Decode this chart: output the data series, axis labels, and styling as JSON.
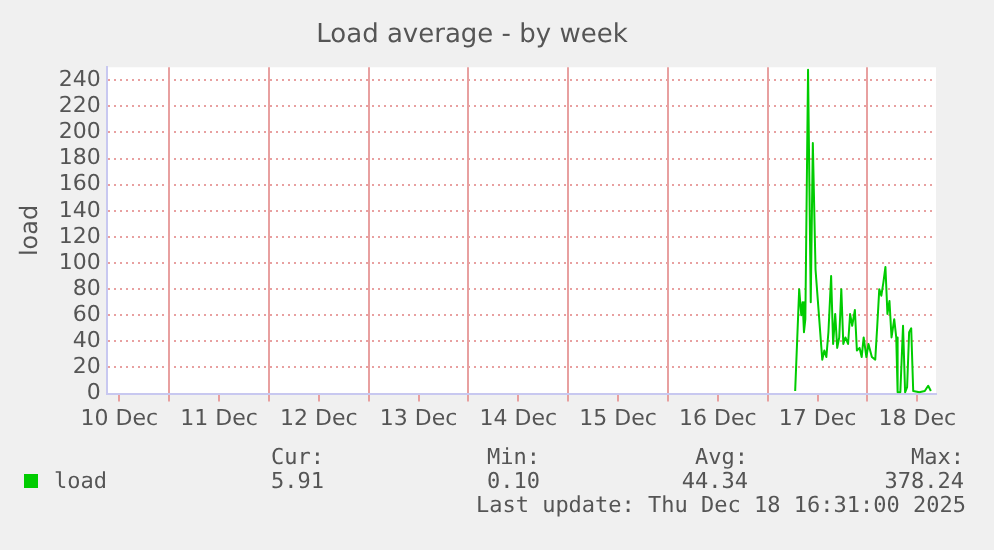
{
  "chart_data": {
    "type": "line",
    "title": "Load average - by week",
    "ylabel": "load",
    "series": [
      {
        "name": "load",
        "color": "#00cc00",
        "x": [
          "2025-12-17T06:37",
          "2025-12-17T07:35",
          "2025-12-17T08:05",
          "2025-12-17T08:25",
          "2025-12-17T08:44",
          "2025-12-17T09:04",
          "2025-12-17T09:43",
          "2025-12-17T10:22",
          "2025-12-17T10:52",
          "2025-12-17T11:31",
          "2025-12-17T13:08",
          "2025-12-17T13:38",
          "2025-12-17T14:07",
          "2025-12-17T14:37",
          "2025-12-17T15:16",
          "2025-12-17T15:45",
          "2025-12-17T16:15",
          "2025-12-17T16:44",
          "2025-12-17T17:13",
          "2025-12-17T17:43",
          "2025-12-17T18:12",
          "2025-12-17T18:42",
          "2025-12-17T19:21",
          "2025-12-17T19:50",
          "2025-12-17T20:20",
          "2025-12-17T20:59",
          "2025-12-17T21:28",
          "2025-12-17T22:07",
          "2025-12-17T22:37",
          "2025-12-17T23:06",
          "2025-12-17T23:45",
          "2025-12-18T00:15",
          "2025-12-18T01:04",
          "2025-12-18T01:53",
          "2025-12-18T02:22",
          "2025-12-18T02:51",
          "2025-12-18T03:21",
          "2025-12-18T03:50",
          "2025-12-18T04:20",
          "2025-12-18T04:49",
          "2025-12-18T05:18",
          "2025-12-18T05:48",
          "2025-12-18T06:27",
          "2025-12-18T06:56",
          "2025-12-18T07:16",
          "2025-12-18T07:55",
          "2025-12-18T08:34",
          "2025-12-18T09:04",
          "2025-12-18T09:33",
          "2025-12-18T10:02",
          "2025-12-18T10:32",
          "2025-12-18T11:01",
          "2025-12-18T12:29",
          "2025-12-18T13:48",
          "2025-12-18T14:37",
          "2025-12-18T15:16"
        ],
        "values": [
          2,
          80,
          60,
          70,
          47,
          57,
          248,
          70,
          192,
          95,
          26,
          33,
          28,
          47,
          90,
          38,
          61,
          35,
          43,
          80,
          38,
          43,
          38,
          61,
          52,
          64,
          33,
          35,
          28,
          43,
          28,
          38,
          28,
          26,
          52,
          80,
          75,
          85,
          97,
          61,
          71,
          43,
          57,
          43,
          1,
          1,
          52,
          1,
          5,
          47,
          50,
          2,
          1,
          2,
          6,
          2
        ]
      }
    ],
    "xlim": [
      "2025-12-10T09:00",
      "2025-12-18T16:30"
    ],
    "xticks": [
      {
        "value": "2025-12-10T12:00",
        "label": "10 Dec"
      },
      {
        "value": "2025-12-11T00:00",
        "label": null
      },
      {
        "value": "2025-12-11T12:00",
        "label": "11 Dec"
      },
      {
        "value": "2025-12-12T00:00",
        "label": null
      },
      {
        "value": "2025-12-12T12:00",
        "label": "12 Dec"
      },
      {
        "value": "2025-12-13T00:00",
        "label": null
      },
      {
        "value": "2025-12-13T12:00",
        "label": "13 Dec"
      },
      {
        "value": "2025-12-14T00:00",
        "label": null
      },
      {
        "value": "2025-12-14T12:00",
        "label": "14 Dec"
      },
      {
        "value": "2025-12-15T00:00",
        "label": null
      },
      {
        "value": "2025-12-15T12:00",
        "label": "15 Dec"
      },
      {
        "value": "2025-12-16T00:00",
        "label": null
      },
      {
        "value": "2025-12-16T12:00",
        "label": "16 Dec"
      },
      {
        "value": "2025-12-17T00:00",
        "label": null
      },
      {
        "value": "2025-12-17T12:00",
        "label": "17 Dec"
      },
      {
        "value": "2025-12-18T00:00",
        "label": null
      },
      {
        "value": "2025-12-18T12:00",
        "label": "18 Dec"
      }
    ],
    "ylim": [
      0,
      250
    ],
    "yticks": [
      0,
      20,
      40,
      60,
      80,
      100,
      120,
      140,
      160,
      180,
      200,
      220,
      240
    ],
    "grid": true,
    "legend": "bottom left",
    "marker": "none",
    "line_style": "solid",
    "annotations": [
      "Cur:",
      "5.91",
      "Min:",
      "0.10",
      "Avg:",
      "44.34",
      "Max:",
      "378.24",
      "Last update: Thu Dec 18 16:31:00 2025"
    ]
  }
}
